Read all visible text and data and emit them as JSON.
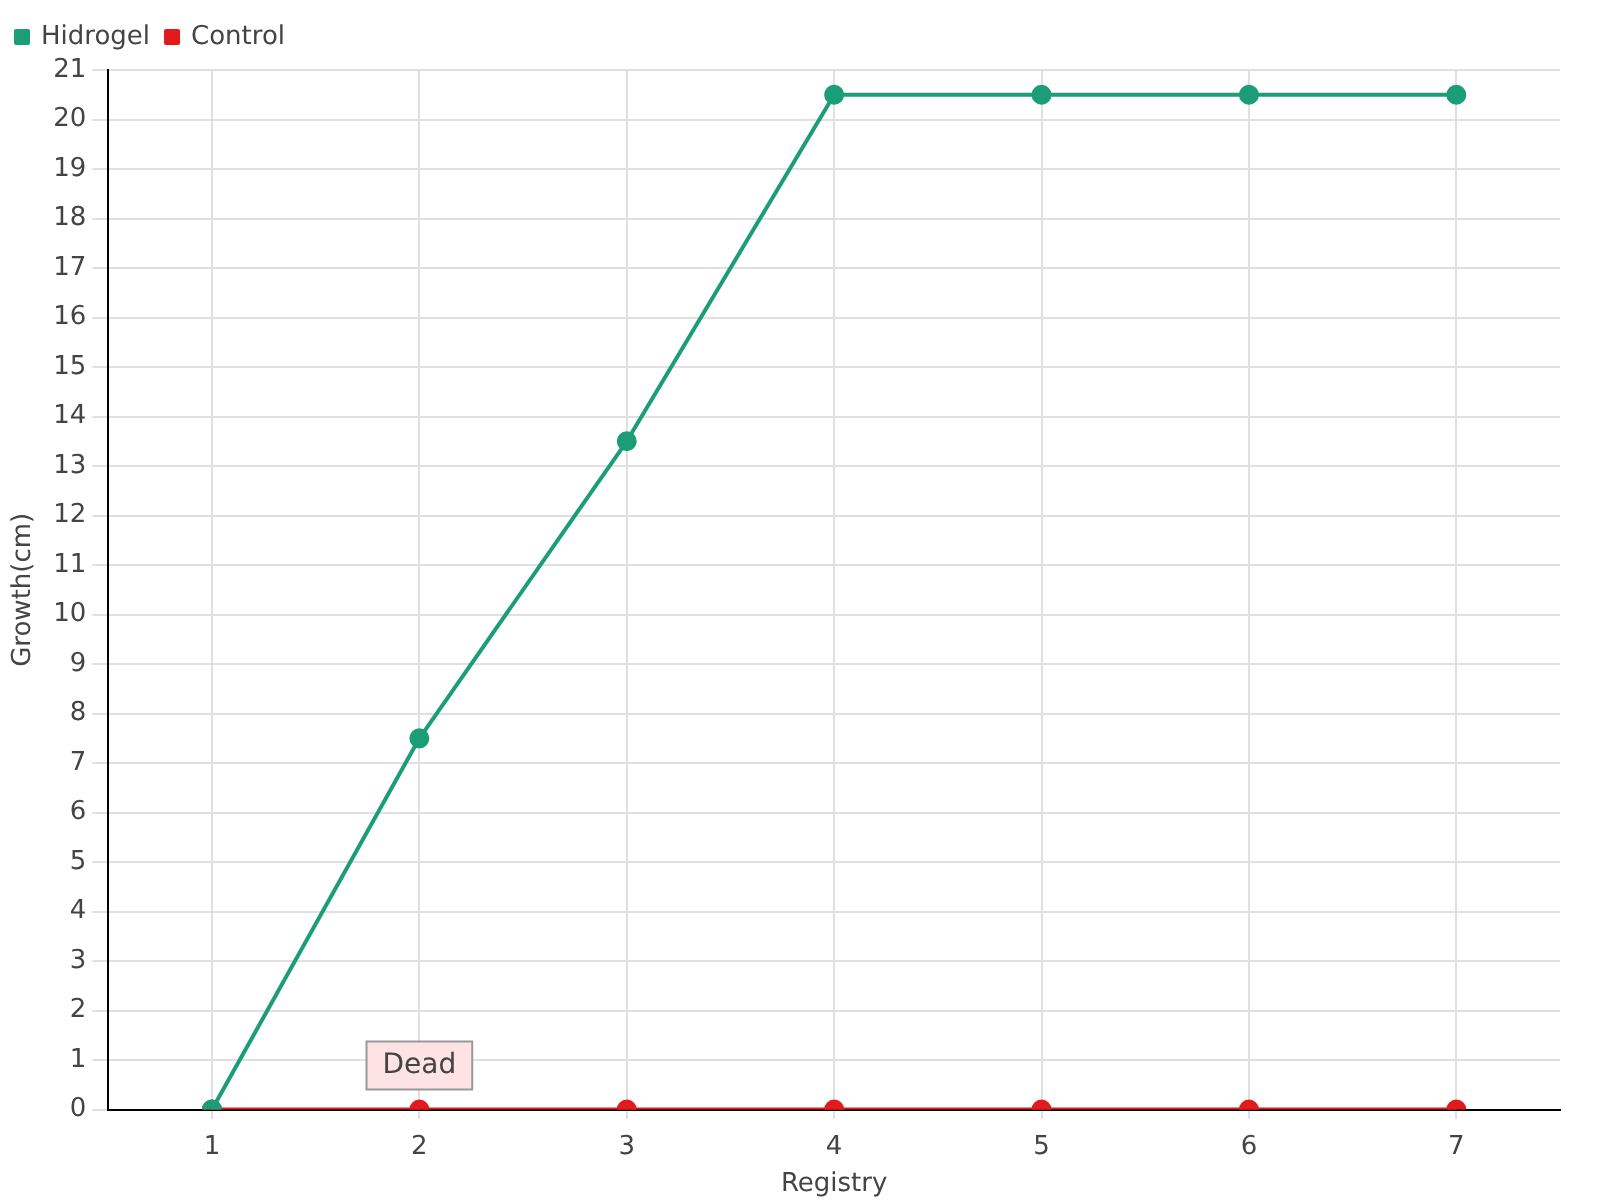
{
  "chart_data": {
    "type": "line",
    "xlabel": "Registry",
    "ylabel": "Growth(cm)",
    "categories": [
      "1",
      "2",
      "3",
      "4",
      "5",
      "6",
      "7"
    ],
    "series": [
      {
        "name": "Hidrogel",
        "color": "#1b9e77",
        "values": [
          0,
          7.5,
          13.5,
          20.5,
          20.5,
          20.5,
          20.5
        ]
      },
      {
        "name": "Control",
        "color": "#e31a1c",
        "values": [
          0,
          0,
          0,
          0,
          0,
          0,
          0
        ]
      }
    ],
    "ylim": [
      0,
      21
    ],
    "yticks": [
      0,
      1,
      2,
      3,
      4,
      5,
      6,
      7,
      8,
      9,
      10,
      11,
      12,
      13,
      14,
      15,
      16,
      17,
      18,
      19,
      20,
      21
    ],
    "grid": true,
    "legend": "top left",
    "marker": "circle",
    "line_style": "solid",
    "annotations": [
      {
        "text": "Dead",
        "x": "2",
        "y": 0
      }
    ]
  }
}
